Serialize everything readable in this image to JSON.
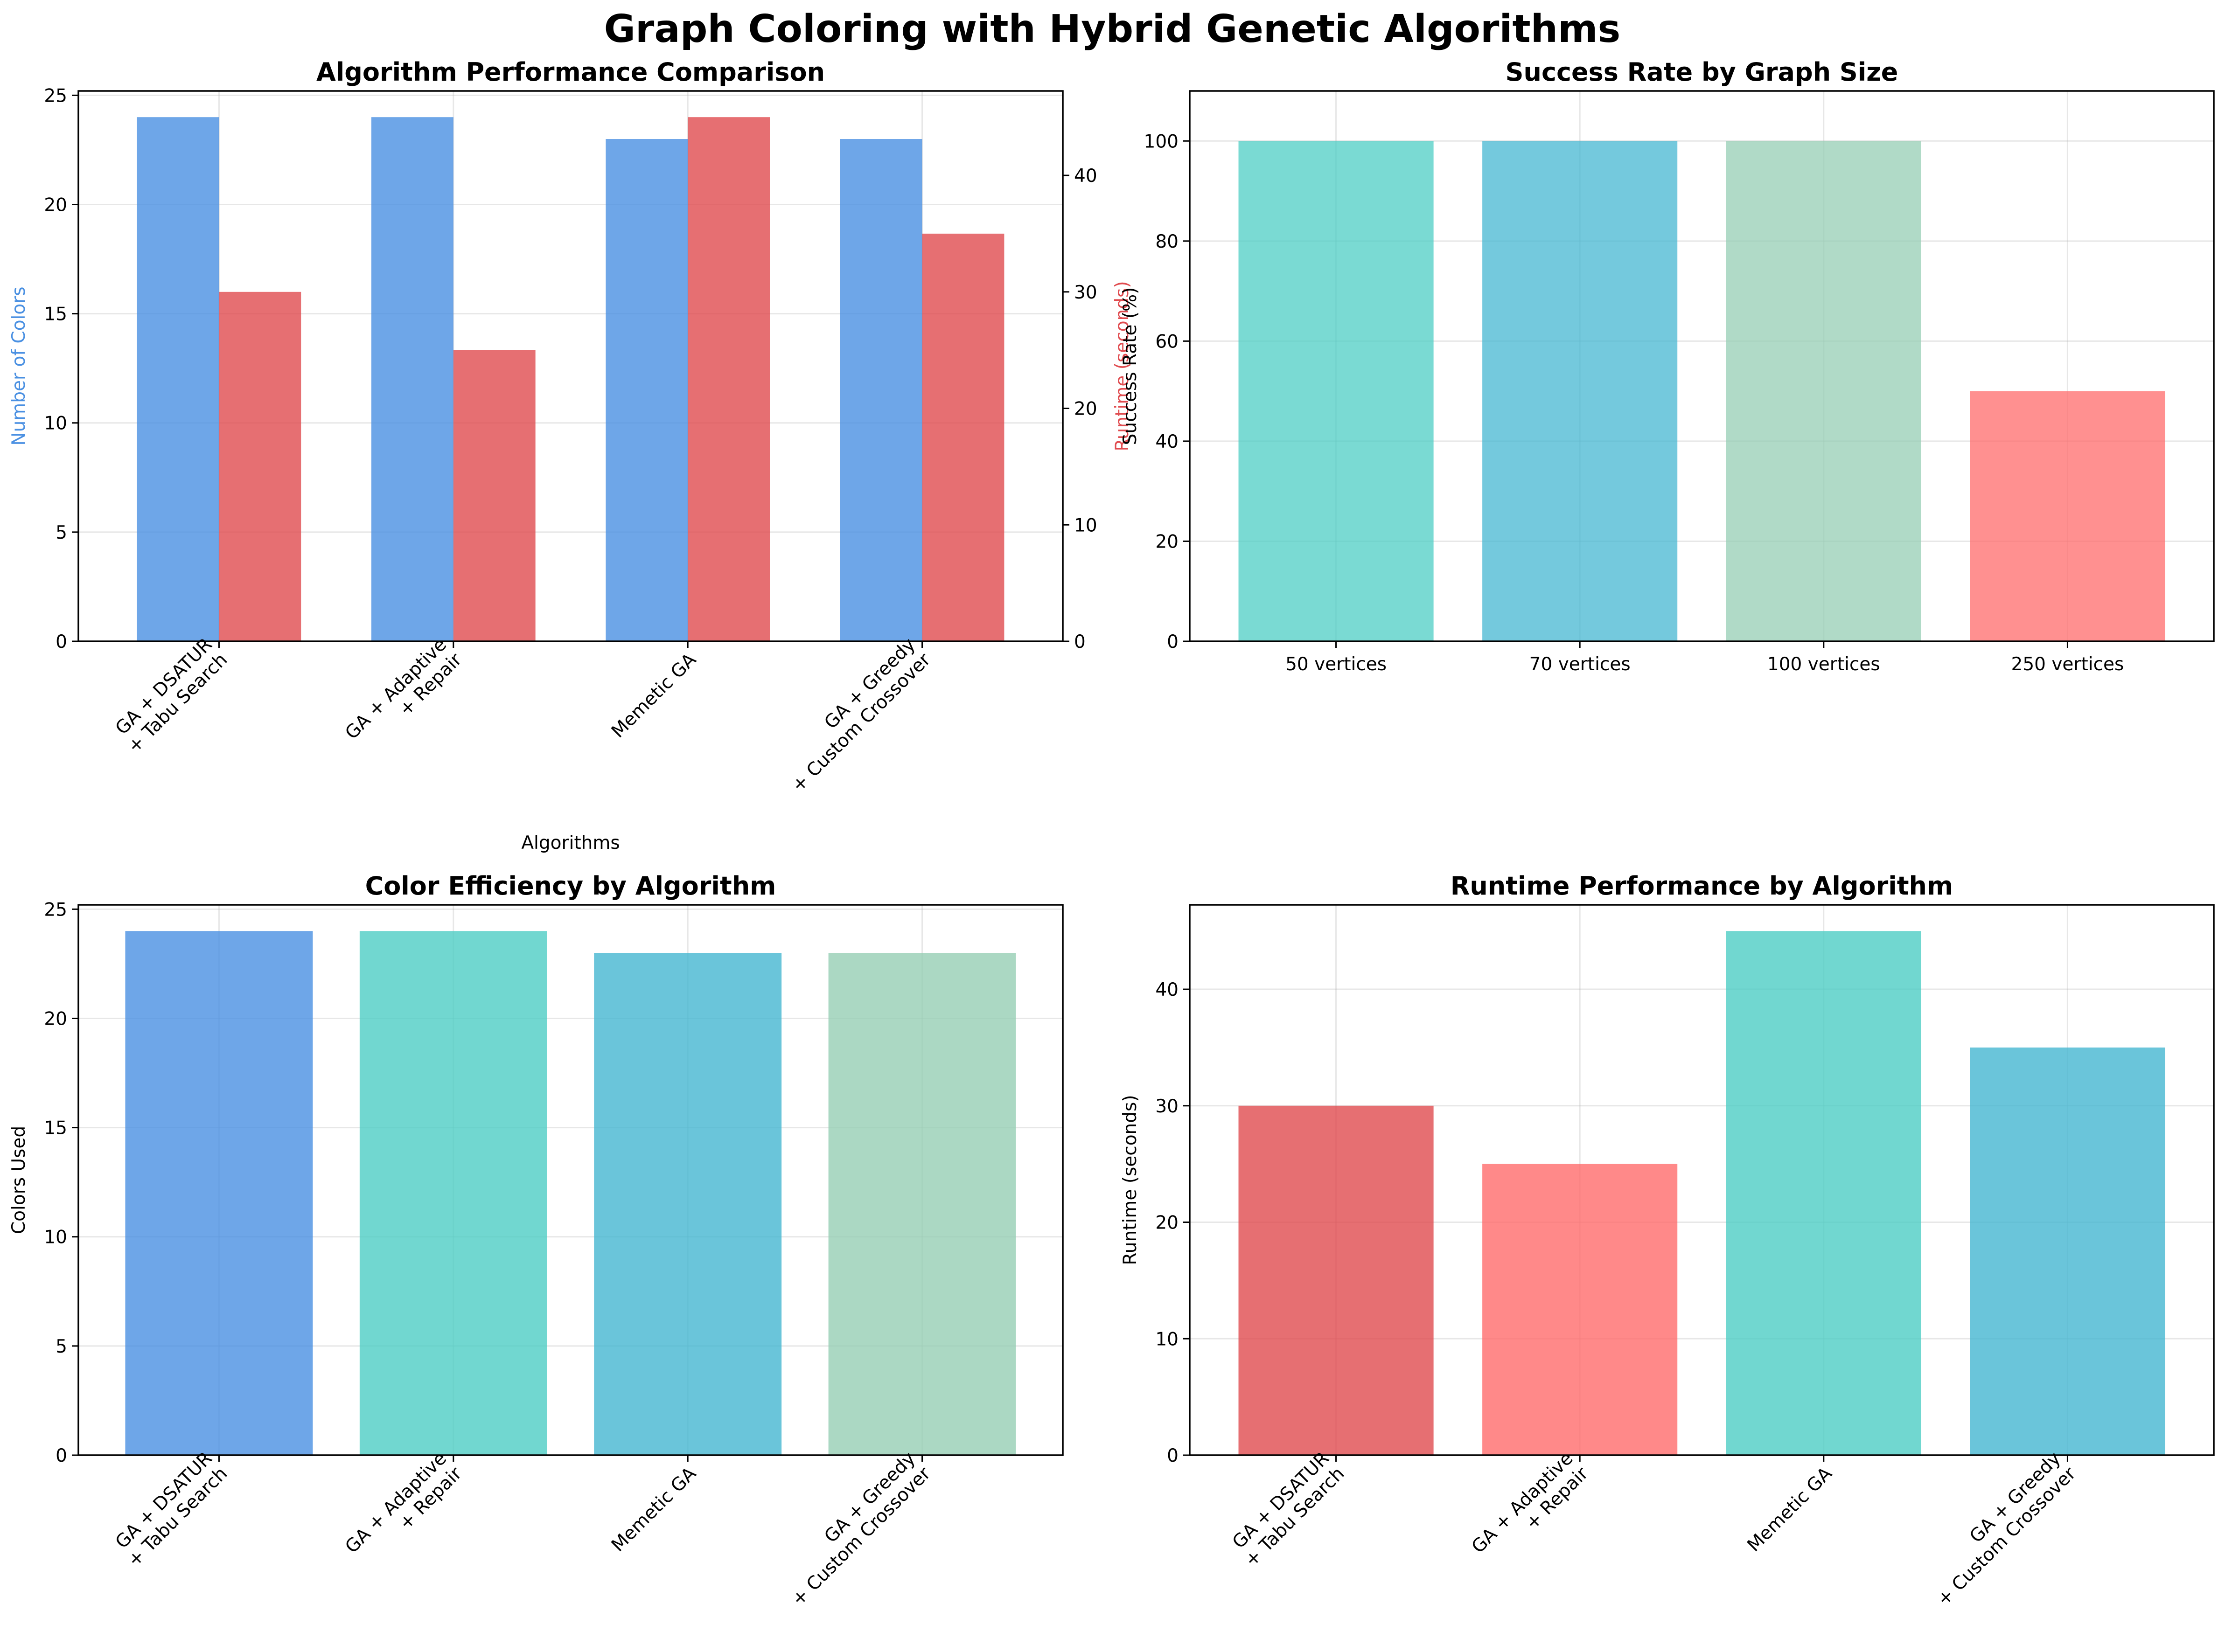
{
  "figure": {
    "title": "Graph Coloring with Hybrid Genetic Algorithms"
  },
  "colors": {
    "blue": "#4a90e2",
    "red": "#e04b4f",
    "teal": "#4ecdc4",
    "sky": "#45b7d1",
    "sage": "#96ceb4",
    "salmon": "#ff6b6b"
  },
  "chart_data": [
    {
      "type": "bar",
      "title": "Algorithm Performance Comparison",
      "xlabel": "Algorithms",
      "ylabel": "Number of Colors",
      "y2label": "Runtime (seconds)",
      "categories": [
        [
          "GA + DSATUR",
          "+ Tabu Search"
        ],
        [
          "GA + Adaptive",
          "+ Repair"
        ],
        [
          "Memetic GA"
        ],
        [
          "GA + Greedy",
          "+ Custom Crossover"
        ]
      ],
      "series": [
        {
          "name": "Number of Colors",
          "axis": "left",
          "values": [
            24,
            24,
            23,
            23
          ]
        },
        {
          "name": "Runtime (seconds)",
          "axis": "right",
          "values": [
            30,
            25,
            45,
            35
          ]
        }
      ],
      "ylim": [
        0,
        25.2
      ],
      "y2lim": [
        0,
        47.25
      ],
      "yticks": [
        0,
        5,
        10,
        15,
        20,
        25
      ],
      "y2ticks": [
        0,
        10,
        20,
        30,
        40
      ],
      "grid": true
    },
    {
      "type": "bar",
      "title": "Success Rate by Graph Size",
      "xlabel": "",
      "ylabel": "Success Rate (%)",
      "categories": [
        [
          "50 vertices"
        ],
        [
          "70 vertices"
        ],
        [
          "100 vertices"
        ],
        [
          "250 vertices"
        ]
      ],
      "values": [
        100,
        100,
        100,
        50
      ],
      "ylim": [
        0,
        110
      ],
      "yticks": [
        0,
        20,
        40,
        60,
        80,
        100
      ],
      "grid": true
    },
    {
      "type": "bar",
      "title": "Color Efficiency by Algorithm",
      "xlabel": "",
      "ylabel": "Colors Used",
      "categories": [
        [
          "GA + DSATUR",
          "+ Tabu Search"
        ],
        [
          "GA + Adaptive",
          "+ Repair"
        ],
        [
          "Memetic GA"
        ],
        [
          "GA + Greedy",
          "+ Custom Crossover"
        ]
      ],
      "values": [
        24,
        24,
        23,
        23
      ],
      "ylim": [
        0,
        25.2
      ],
      "yticks": [
        0,
        5,
        10,
        15,
        20,
        25
      ],
      "grid": true
    },
    {
      "type": "bar",
      "title": "Runtime Performance by Algorithm",
      "xlabel": "",
      "ylabel": "Runtime (seconds)",
      "categories": [
        [
          "GA + DSATUR",
          "+ Tabu Search"
        ],
        [
          "GA + Adaptive",
          "+ Repair"
        ],
        [
          "Memetic GA"
        ],
        [
          "GA + Greedy",
          "+ Custom Crossover"
        ]
      ],
      "values": [
        30,
        25,
        45,
        35
      ],
      "ylim": [
        0,
        47.25
      ],
      "yticks": [
        0,
        10,
        20,
        30,
        40
      ],
      "grid": true
    }
  ]
}
